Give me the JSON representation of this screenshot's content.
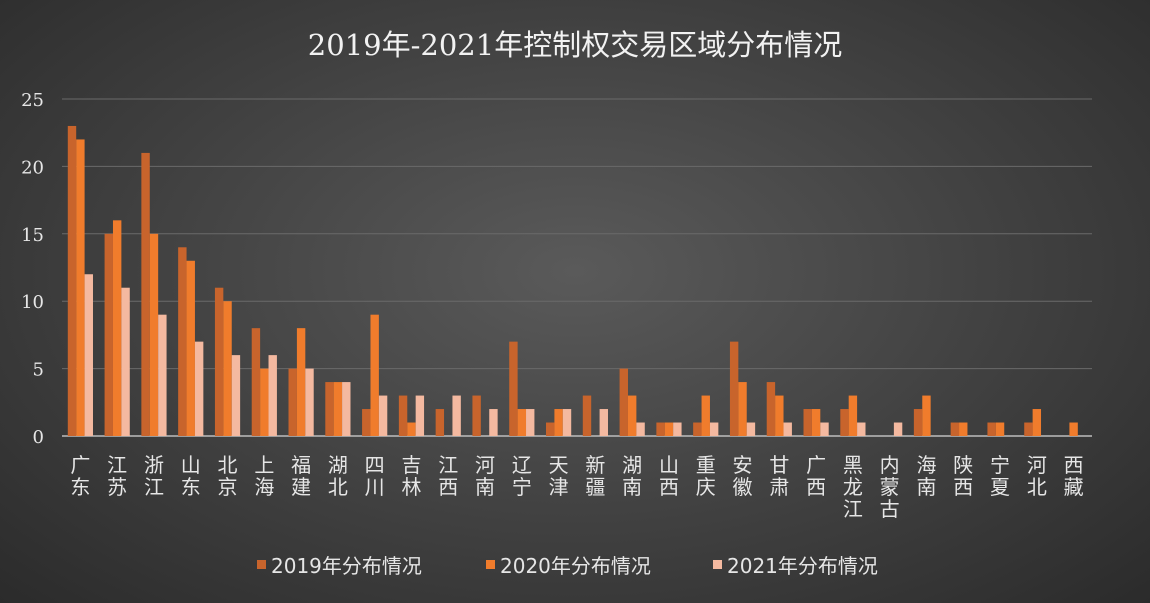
{
  "chart_data": {
    "type": "bar",
    "title": "2019年-2021年控制权交易区域分布情况",
    "ylim": [
      0,
      25
    ],
    "yticks": [
      0,
      5,
      10,
      15,
      20,
      25
    ],
    "grid": true,
    "legend_position": "bottom",
    "categories": [
      "广东",
      "江苏",
      "浙江",
      "山东",
      "北京",
      "上海",
      "福建",
      "湖北",
      "四川",
      "吉林",
      "江西",
      "河南",
      "辽宁",
      "天津",
      "新疆",
      "湖南",
      "山西",
      "重庆",
      "安徽",
      "甘肃",
      "广西",
      "黑龙江",
      "内蒙古",
      "海南",
      "陕西",
      "宁夏",
      "河北",
      "西藏"
    ],
    "series": [
      {
        "name": "2019年分布情况",
        "color": "#c8642c",
        "values": [
          23,
          15,
          21,
          14,
          11,
          8,
          5,
          4,
          2,
          3,
          2,
          3,
          7,
          1,
          3,
          5,
          1,
          1,
          7,
          4,
          2,
          2,
          0,
          2,
          1,
          1,
          1,
          0
        ]
      },
      {
        "name": "2020年分布情况",
        "color": "#f07c2c",
        "values": [
          22,
          16,
          15,
          13,
          10,
          5,
          8,
          4,
          9,
          1,
          0,
          0,
          2,
          2,
          0,
          3,
          1,
          3,
          4,
          3,
          2,
          3,
          0,
          3,
          1,
          1,
          2,
          1
        ]
      },
      {
        "name": "2021年分布情况",
        "color": "#f4b9a0",
        "values": [
          12,
          11,
          9,
          7,
          6,
          6,
          5,
          4,
          3,
          3,
          3,
          2,
          2,
          2,
          2,
          1,
          1,
          1,
          1,
          1,
          1,
          1,
          1,
          0,
          0,
          0,
          0,
          0
        ]
      }
    ]
  }
}
